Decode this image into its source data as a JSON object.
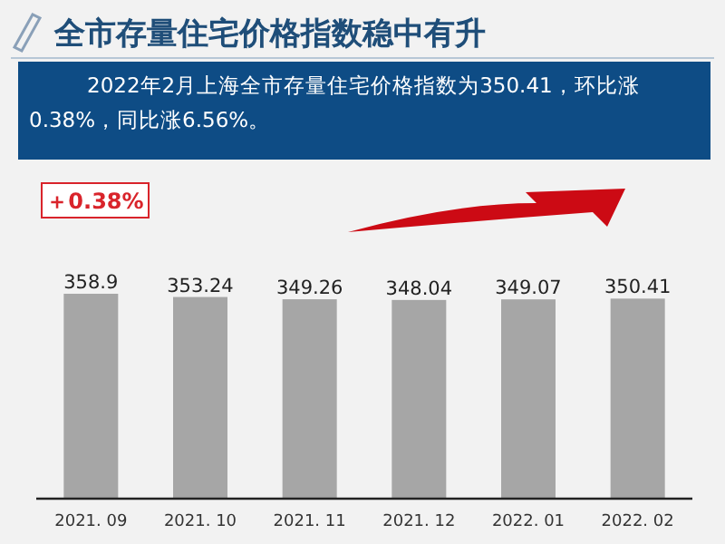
{
  "chart_data": {
    "type": "bar",
    "title": "全市存量住宅价格指数稳中有升",
    "subtitle": "2022年2月上海全市存量住宅价格指数为350.41，环比涨0.38%，同比涨6.56%。",
    "annotations": [
      "＋0.38%"
    ],
    "categories": [
      "2021. 09",
      "2021. 10",
      "2021. 11",
      "2021. 12",
      "2022. 01",
      "2022. 02"
    ],
    "values": [
      358.9,
      353.24,
      349.26,
      348.04,
      349.07,
      350.41
    ],
    "color": "#a6a6a6",
    "data_labels": true
  }
}
